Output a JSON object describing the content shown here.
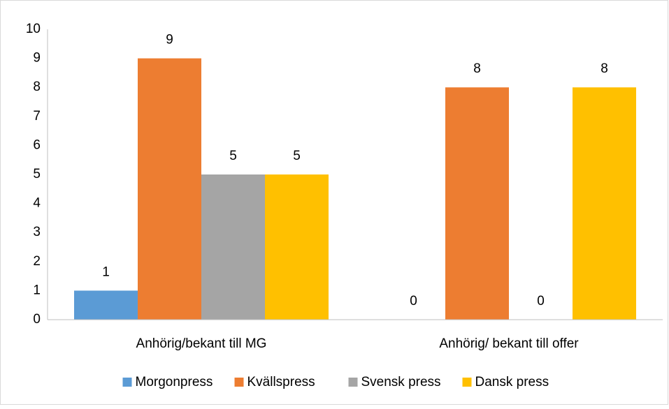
{
  "chart_data": {
    "type": "bar",
    "categories": [
      "Anhörig/bekant till MG",
      "Anhörig/ bekant till offer"
    ],
    "series": [
      {
        "name": "Morgonpress",
        "color": "#5b9bd5",
        "values": [
          1,
          0
        ]
      },
      {
        "name": "Kvällspress",
        "color": "#ed7d31",
        "values": [
          9,
          8
        ]
      },
      {
        "name": "Svensk press",
        "color": "#a5a5a5",
        "values": [
          5,
          0
        ]
      },
      {
        "name": "Dansk press",
        "color": "#ffc000",
        "values": [
          5,
          8
        ]
      }
    ],
    "ylim": [
      0,
      10
    ],
    "yticks": [
      0,
      1,
      2,
      3,
      4,
      5,
      6,
      7,
      8,
      9,
      10
    ],
    "grid": false,
    "data_labels": true,
    "legend": "bottom"
  }
}
